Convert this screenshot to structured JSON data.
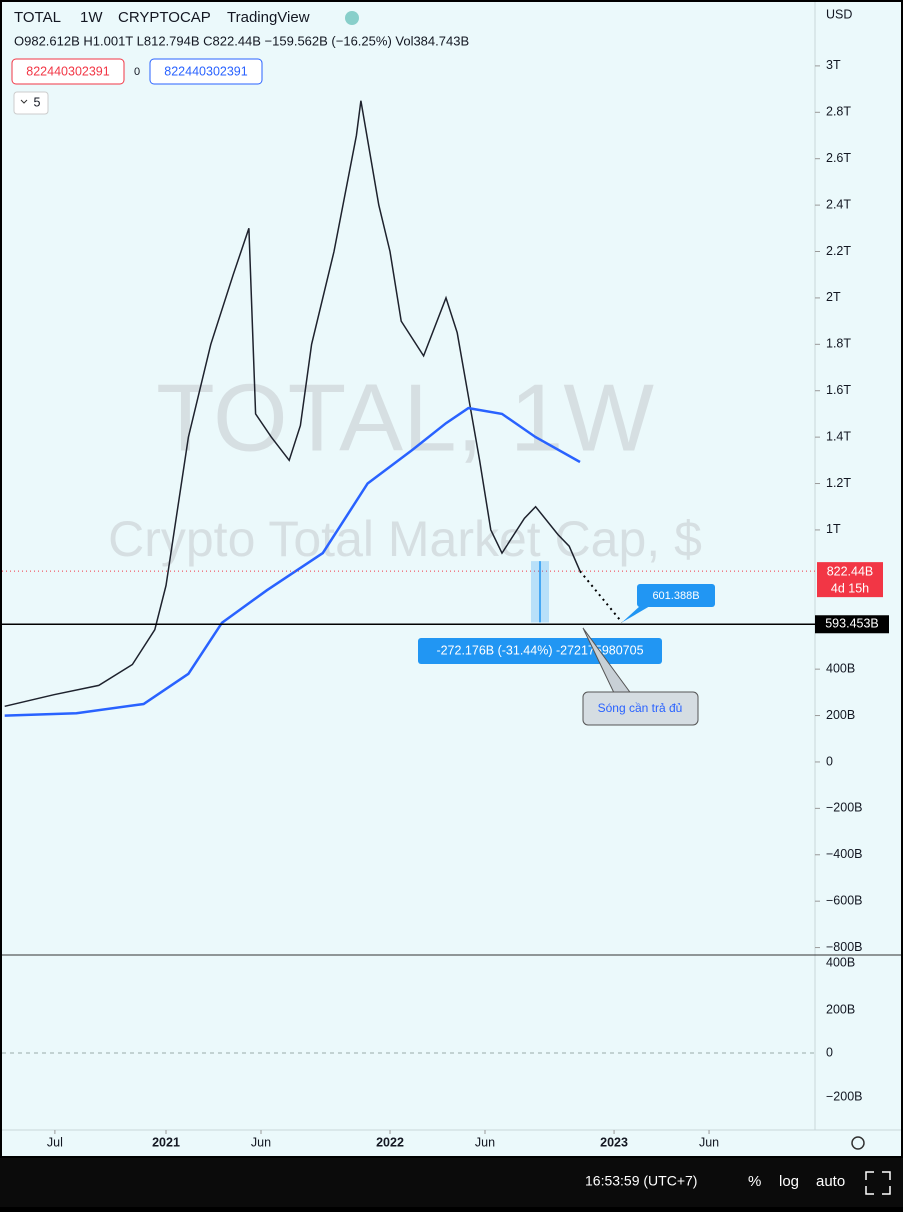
{
  "header": {
    "symbol": "TOTAL",
    "interval": "1W",
    "exchange": "CRYPTOCAP",
    "source": "TradingView",
    "ohlc": "O982.612B H1.001T L812.794B C822.44B −159.562B (−16.25%) Vol384.743B",
    "sell": "822440302391",
    "spread": "0",
    "buy": "822440302391",
    "indicators": "5",
    "currency": "USD"
  },
  "chart_data": {
    "type": "line",
    "watermark": "TOTAL, 1W",
    "watermark_sub": "Crypto Total Market Cap, $",
    "xlim": [
      2020.259,
      2023.897
    ],
    "ylim": [
      -832,
      3284
    ],
    "xticks": [
      {
        "value": 2020.504,
        "label": "Jul"
      },
      {
        "value": 2021,
        "label": "2021"
      },
      {
        "value": 2021.424,
        "label": "Jun"
      },
      {
        "value": 2022,
        "label": "2022"
      },
      {
        "value": 2022.424,
        "label": "Jun"
      },
      {
        "value": 2023,
        "label": "2023"
      },
      {
        "value": 2023.424,
        "label": "Jun"
      }
    ],
    "yticks": [
      {
        "value": 3000,
        "label": "3T"
      },
      {
        "value": 2800,
        "label": "2.8T"
      },
      {
        "value": 2600,
        "label": "2.6T"
      },
      {
        "value": 2400,
        "label": "2.4T"
      },
      {
        "value": 2200,
        "label": "2.2T"
      },
      {
        "value": 2000,
        "label": "2T"
      },
      {
        "value": 1800,
        "label": "1.8T"
      },
      {
        "value": 1600,
        "label": "1.6T"
      },
      {
        "value": 1400,
        "label": "1.4T"
      },
      {
        "value": 1200,
        "label": "1.2T"
      },
      {
        "value": 1000,
        "label": "1T"
      },
      {
        "value": 400,
        "label": "400B"
      },
      {
        "value": 200,
        "label": "200B"
      },
      0,
      {
        "value": -200,
        "label": "−200B"
      },
      {
        "value": -400,
        "label": "−400B"
      },
      {
        "value": -600,
        "label": "−600B"
      },
      {
        "value": -800,
        "label": "−800B"
      }
    ],
    "series": [
      {
        "color": "#1e222d",
        "x": [
          2020.28,
          2020.5,
          2020.7,
          2020.85,
          2020.95,
          2021.0,
          2021.1,
          2021.2,
          2021.3,
          2021.37,
          2021.4,
          2021.47,
          2021.55,
          2021.6,
          2021.65,
          2021.75,
          2021.85,
          2021.87,
          2021.95,
          2022.0,
          2022.05,
          2022.15,
          2022.25,
          2022.3,
          2022.4,
          2022.45,
          2022.5,
          2022.6,
          2022.65,
          2022.75,
          2022.8,
          2022.848
        ],
        "values": [
          240,
          290,
          330,
          420,
          570,
          760,
          1400,
          1800,
          2100,
          2300,
          1500,
          1400,
          1300,
          1450,
          1800,
          2200,
          2700,
          2850,
          2400,
          2200,
          1900,
          1750,
          2000,
          1850,
          1300,
          1000,
          900,
          1050,
          1100,
          980,
          930,
          822.44
        ]
      },
      {
        "color": "#2962ff",
        "x": [
          2020.28,
          2020.6,
          2020.9,
          2021.1,
          2021.25,
          2021.45,
          2021.7,
          2021.9,
          2022.1,
          2022.25,
          2022.35,
          2022.5,
          2022.65,
          2022.848
        ],
        "values": [
          200,
          210,
          250,
          380,
          600,
          740,
          900,
          1200,
          1345,
          1460,
          1525,
          1500,
          1400,
          1293
        ]
      }
    ],
    "price_marker": {
      "value": 822.44,
      "label": "822.44B",
      "countdown": "4d 15h",
      "color": "#f23645"
    },
    "hline": {
      "value": 593.453,
      "label": "593.453B"
    },
    "target": {
      "value": 601.388,
      "label": "601.388B"
    },
    "measure": "-272.176B (-31.44%) -272175980705",
    "annotation": "Sóng cần trả đủ"
  },
  "macd_axis": [
    "400B",
    "200B",
    "0",
    "−200B"
  ],
  "status": {
    "time": "16:53:59 (UTC+7)",
    "percent": "%",
    "log": "log",
    "auto": "auto"
  }
}
